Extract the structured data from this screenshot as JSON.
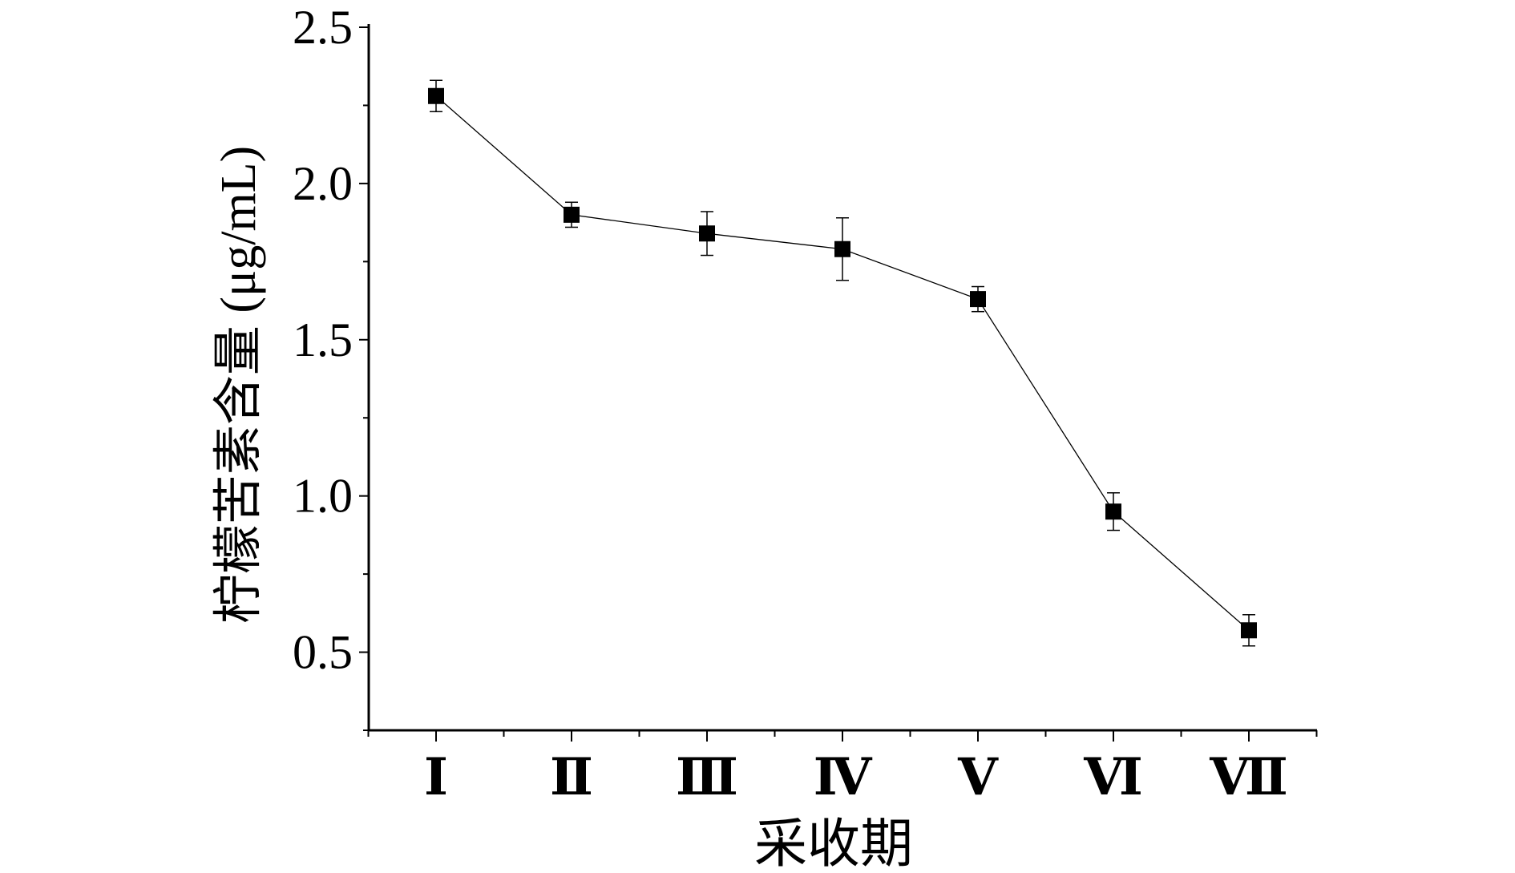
{
  "chart_data": {
    "type": "line",
    "title": "",
    "xlabel": "采收期",
    "ylabel": "柠檬苦素含量 (μg/mL)",
    "categories": [
      "Ⅰ",
      "Ⅱ",
      "Ⅲ",
      "Ⅳ",
      "Ⅴ",
      "Ⅵ",
      "Ⅶ"
    ],
    "series": [
      {
        "values": [
          2.28,
          1.9,
          1.84,
          1.79,
          1.63,
          0.95,
          0.57
        ],
        "errors": [
          0.05,
          0.04,
          0.07,
          0.1,
          0.04,
          0.06,
          0.05
        ],
        "marker": "square",
        "color": "#000000"
      }
    ],
    "ylim": [
      0.25,
      2.5
    ],
    "yticks": [
      "0.5",
      "1.0",
      "1.5",
      "2.0",
      "2.5"
    ],
    "grid": false,
    "legend": "none"
  }
}
